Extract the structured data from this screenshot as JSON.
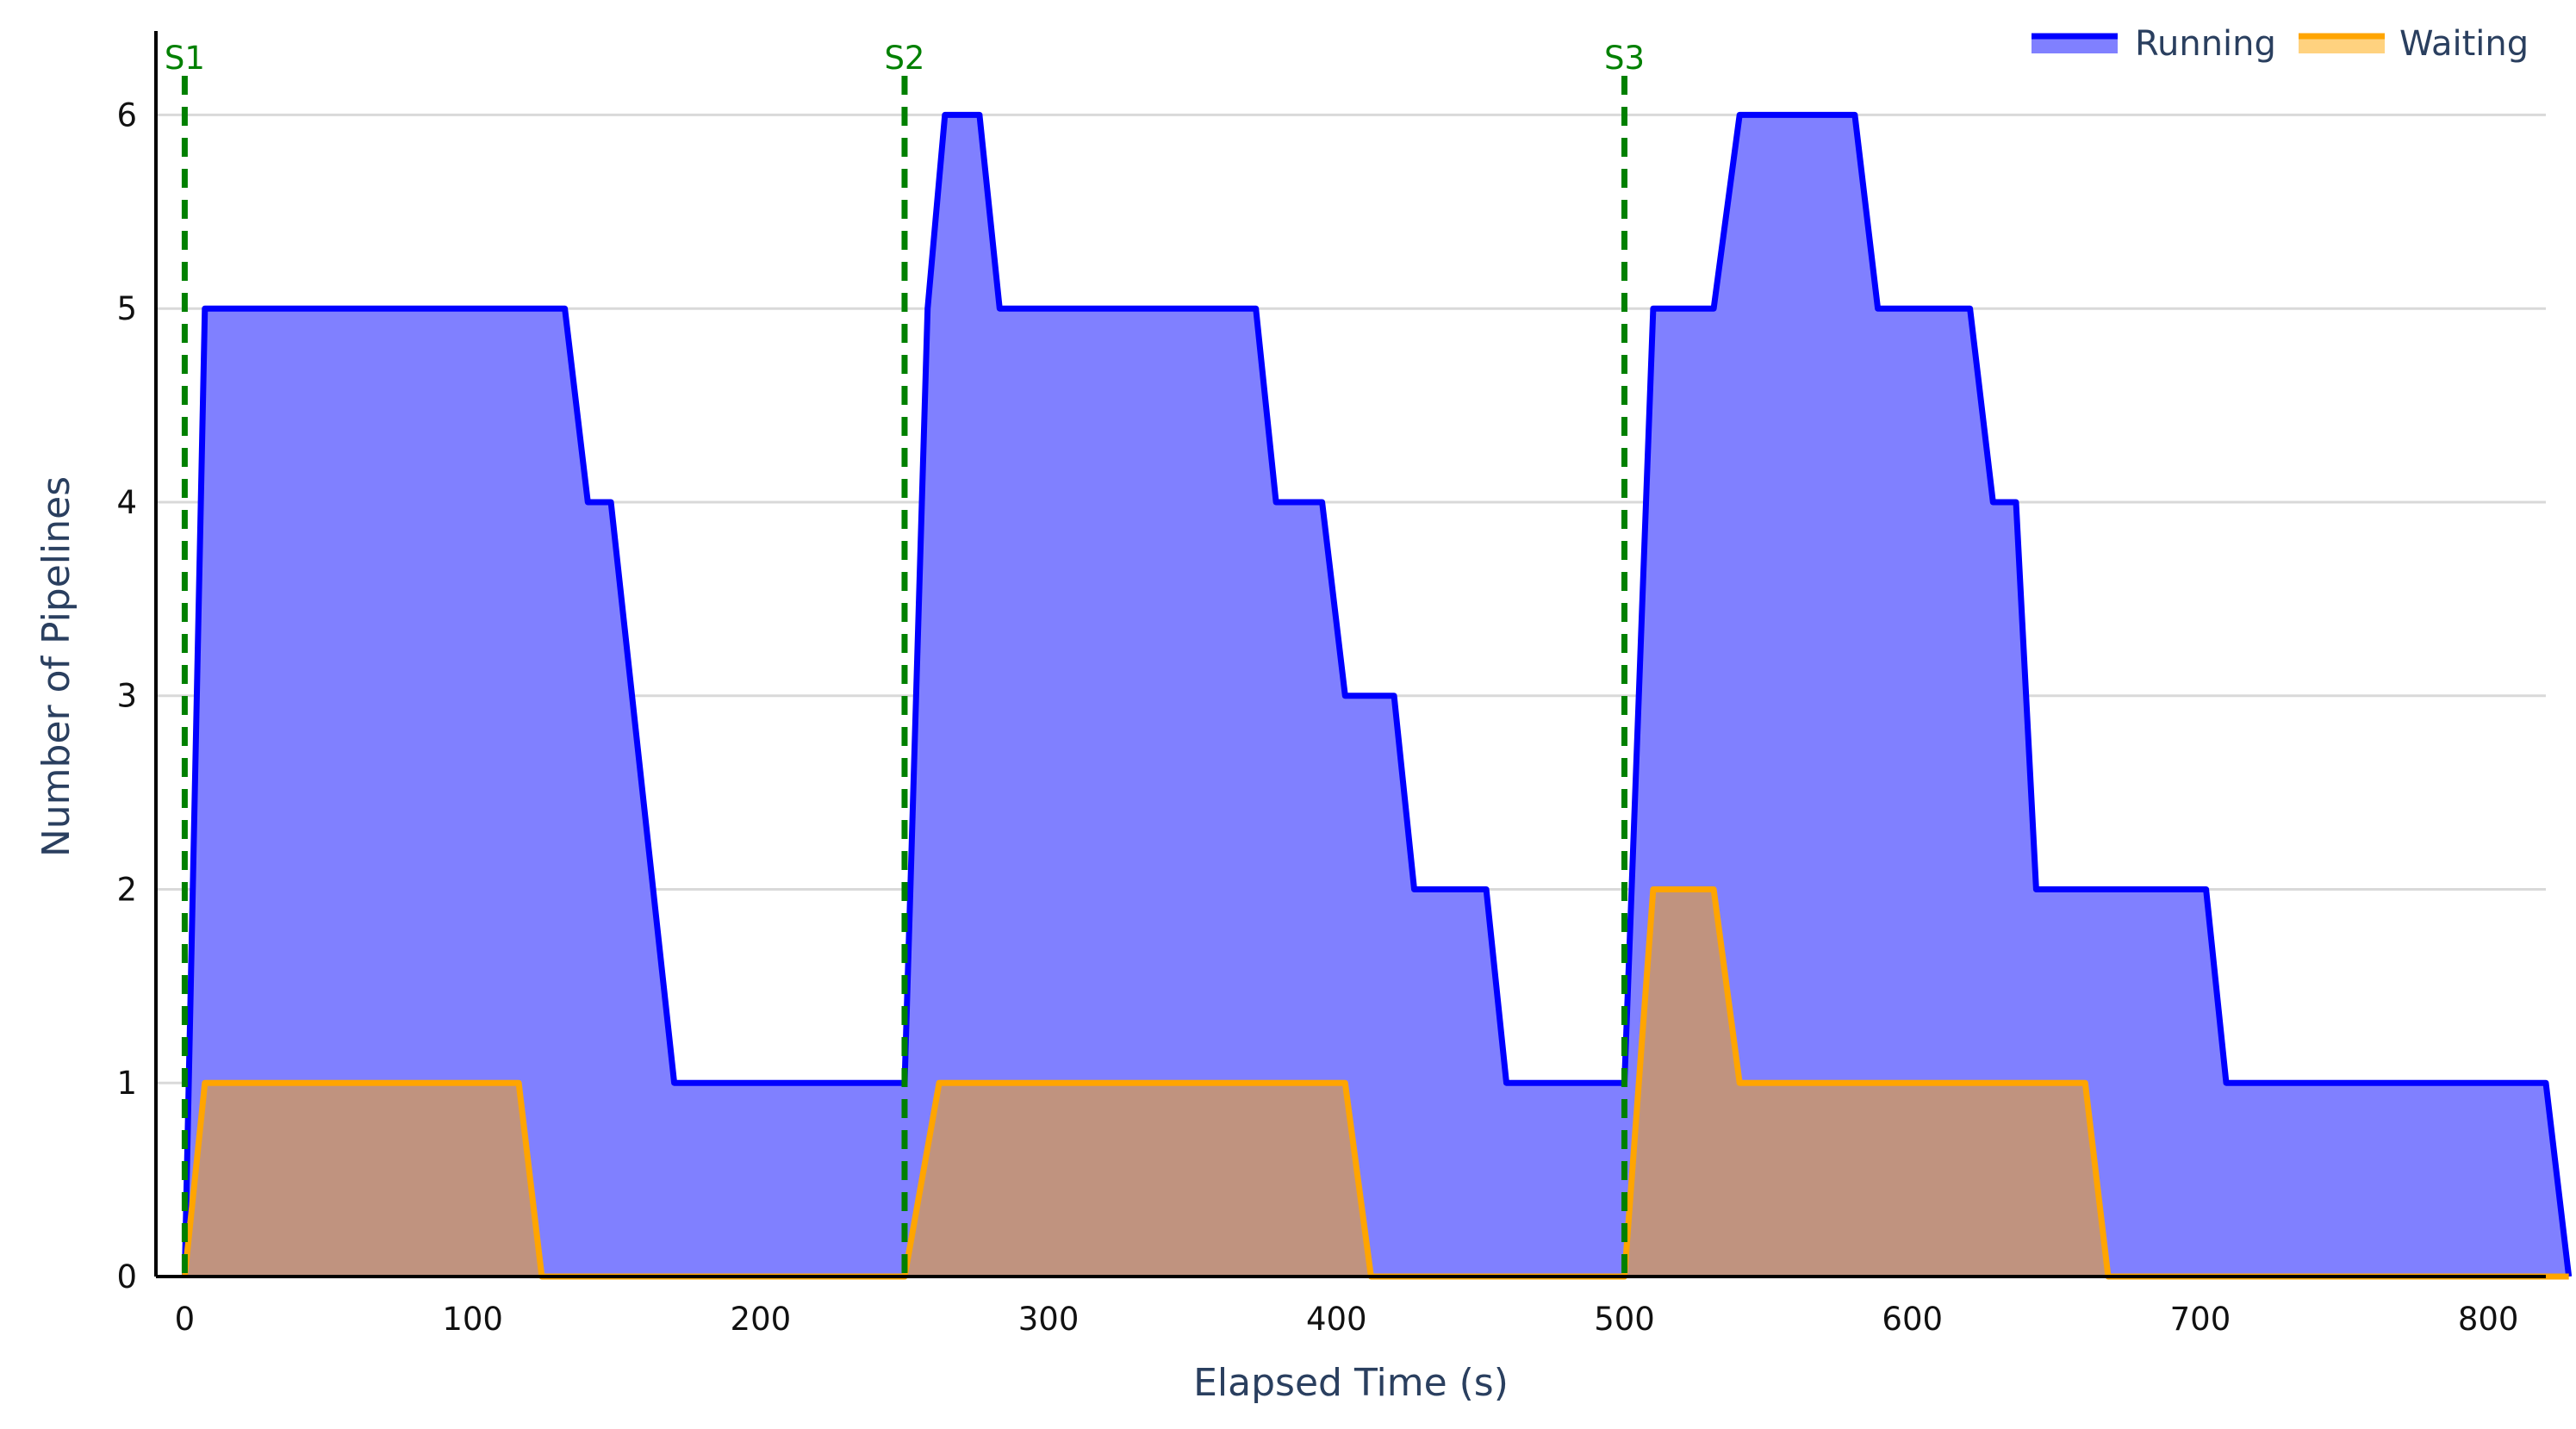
{
  "chart_data": {
    "type": "area",
    "title": "",
    "xlabel": "Elapsed Time (s)",
    "ylabel": "Number of Pipelines",
    "xlim": [
      -10,
      820
    ],
    "ylim": [
      0,
      6.3
    ],
    "x_ticks": [
      0,
      100,
      200,
      300,
      400,
      500,
      600,
      700,
      800
    ],
    "y_ticks": [
      0,
      1,
      2,
      3,
      4,
      5,
      6
    ],
    "grid": "horizontal",
    "legend_position": "top-right",
    "series": [
      {
        "name": "Running",
        "color": "#0000ff",
        "fill": "#8080ff",
        "x": [
          0,
          7,
          132,
          140,
          148,
          170,
          250,
          258,
          264,
          276,
          283,
          372,
          379,
          395,
          403,
          420,
          427,
          452,
          459,
          500,
          510,
          531,
          540,
          580,
          588,
          620,
          628,
          636,
          643,
          702,
          709,
          820,
          828
        ],
        "y": [
          0,
          5,
          5,
          4,
          4,
          1,
          1,
          5,
          6,
          6,
          5,
          5,
          4,
          4,
          3,
          3,
          2,
          2,
          1,
          1,
          5,
          5,
          6,
          6,
          5,
          5,
          4,
          4,
          2,
          2,
          1,
          1,
          0
        ]
      },
      {
        "name": "Waiting",
        "color": "#ffa500",
        "fill": "rgba(255,165,0,0.5)",
        "x": [
          0,
          7,
          116,
          124,
          250,
          262,
          403,
          412,
          500,
          510,
          531,
          540,
          660,
          668,
          828
        ],
        "y": [
          0,
          1,
          1,
          0,
          0,
          1,
          1,
          0,
          0,
          2,
          2,
          1,
          1,
          0,
          0
        ]
      }
    ],
    "markers": [
      {
        "label": "S1",
        "x": 0,
        "color": "#008000"
      },
      {
        "label": "S2",
        "x": 250,
        "color": "#008000"
      },
      {
        "label": "S3",
        "x": 500,
        "color": "#008000"
      }
    ]
  }
}
